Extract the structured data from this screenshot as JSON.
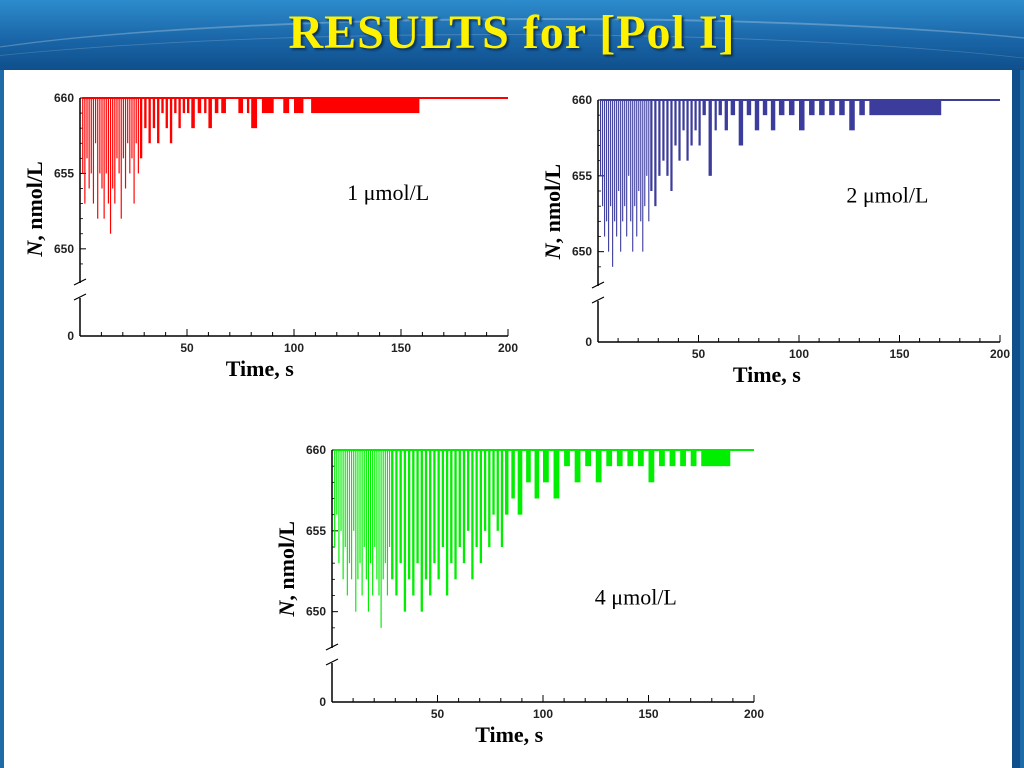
{
  "slide": {
    "title": "RESULTS for [Pol I]"
  },
  "chart_data": [
    {
      "type": "line",
      "annotation": "1 μmol/L",
      "xlabel": "Time, s",
      "ylabel_italic": "N",
      "ylabel_rest": ", nmol/L",
      "xticks": [
        "50",
        "100",
        "150",
        "200"
      ],
      "yticks": [
        "660",
        "655",
        "650",
        "0"
      ],
      "xlim": [
        0,
        200
      ],
      "ylim_upper": [
        648,
        660
      ],
      "axis_break": true,
      "grid": false,
      "series": [
        {
          "color": "#ff0000",
          "x": [
            1,
            2,
            3,
            4,
            5,
            6,
            7,
            8,
            9,
            10,
            11,
            12,
            13,
            14,
            15,
            16,
            17,
            18,
            19,
            20,
            21,
            22,
            23,
            24,
            25,
            26,
            27,
            28,
            30,
            32,
            34,
            36,
            38,
            40,
            42,
            44,
            46,
            48,
            50,
            52,
            55,
            58,
            60,
            63,
            66,
            70,
            74,
            78,
            80,
            85,
            95,
            100,
            108,
            200
          ],
          "y": [
            655,
            653,
            656,
            654,
            655,
            653,
            657,
            652,
            655,
            654,
            652,
            655,
            653,
            651,
            654,
            653,
            656,
            655,
            652,
            656,
            654,
            657,
            655,
            656,
            653,
            657,
            655,
            656,
            658,
            657,
            658,
            657,
            659,
            658,
            657,
            659,
            658,
            659,
            659,
            658,
            659,
            659,
            658,
            659,
            659,
            660,
            659,
            659,
            658,
            659,
            659,
            659,
            659,
            660
          ]
        }
      ]
    },
    {
      "type": "line",
      "annotation": "2 μmol/L",
      "xlabel": "Time, s",
      "ylabel_italic": "N",
      "ylabel_rest": ", nmol/L",
      "xticks": [
        "50",
        "100",
        "150",
        "200"
      ],
      "yticks": [
        "660",
        "655",
        "650",
        "0"
      ],
      "xlim": [
        0,
        200
      ],
      "ylim_upper": [
        648,
        660
      ],
      "axis_break": true,
      "grid": false,
      "series": [
        {
          "color": "#3c3c9c",
          "x": [
            1,
            2,
            3,
            4,
            5,
            6,
            7,
            8,
            9,
            10,
            11,
            12,
            13,
            14,
            15,
            16,
            17,
            18,
            19,
            20,
            21,
            22,
            23,
            24,
            25,
            26,
            28,
            30,
            32,
            34,
            36,
            38,
            40,
            42,
            44,
            46,
            48,
            50,
            52,
            55,
            58,
            60,
            63,
            66,
            70,
            74,
            78,
            82,
            86,
            90,
            95,
            100,
            105,
            110,
            115,
            120,
            125,
            130,
            135,
            200
          ],
          "y": [
            655,
            653,
            651,
            652,
            650,
            653,
            649,
            652,
            651,
            654,
            650,
            652,
            653,
            651,
            655,
            652,
            650,
            653,
            651,
            654,
            652,
            650,
            653,
            655,
            652,
            654,
            653,
            655,
            656,
            655,
            654,
            657,
            656,
            658,
            656,
            657,
            658,
            657,
            659,
            655,
            658,
            659,
            658,
            659,
            657,
            659,
            658,
            659,
            658,
            659,
            659,
            658,
            659,
            659,
            659,
            659,
            658,
            659,
            659,
            660
          ]
        }
      ]
    },
    {
      "type": "line",
      "annotation": "4 μmol/L",
      "xlabel": "Time, s",
      "ylabel_italic": "N",
      "ylabel_rest": ", nmol/L",
      "xticks": [
        "50",
        "100",
        "150",
        "200"
      ],
      "yticks": [
        "660",
        "655",
        "650",
        "0"
      ],
      "xlim": [
        0,
        200
      ],
      "ylim_upper": [
        648,
        660
      ],
      "axis_break": true,
      "grid": false,
      "series": [
        {
          "color": "#00ee00",
          "x": [
            1,
            2,
            3,
            4,
            5,
            6,
            7,
            8,
            9,
            10,
            11,
            12,
            13,
            14,
            15,
            16,
            17,
            18,
            19,
            20,
            21,
            22,
            23,
            24,
            25,
            26,
            27,
            28,
            30,
            32,
            34,
            36,
            38,
            40,
            42,
            44,
            46,
            48,
            50,
            52,
            54,
            56,
            58,
            60,
            62,
            64,
            66,
            68,
            70,
            72,
            74,
            76,
            78,
            80,
            82,
            85,
            88,
            92,
            96,
            100,
            105,
            110,
            115,
            120,
            125,
            130,
            135,
            140,
            145,
            150,
            155,
            160,
            165,
            170,
            175,
            200
          ],
          "y": [
            654,
            656,
            653,
            655,
            652,
            654,
            651,
            653,
            652,
            655,
            650,
            652,
            653,
            651,
            654,
            652,
            650,
            653,
            651,
            654,
            652,
            651,
            649,
            652,
            653,
            651,
            654,
            652,
            651,
            653,
            650,
            652,
            651,
            653,
            650,
            652,
            651,
            653,
            652,
            654,
            651,
            653,
            652,
            654,
            653,
            655,
            652,
            654,
            653,
            655,
            654,
            656,
            655,
            654,
            656,
            657,
            656,
            658,
            657,
            658,
            657,
            659,
            658,
            659,
            658,
            659,
            659,
            659,
            659,
            658,
            659,
            659,
            659,
            659,
            659,
            660
          ]
        }
      ]
    }
  ]
}
